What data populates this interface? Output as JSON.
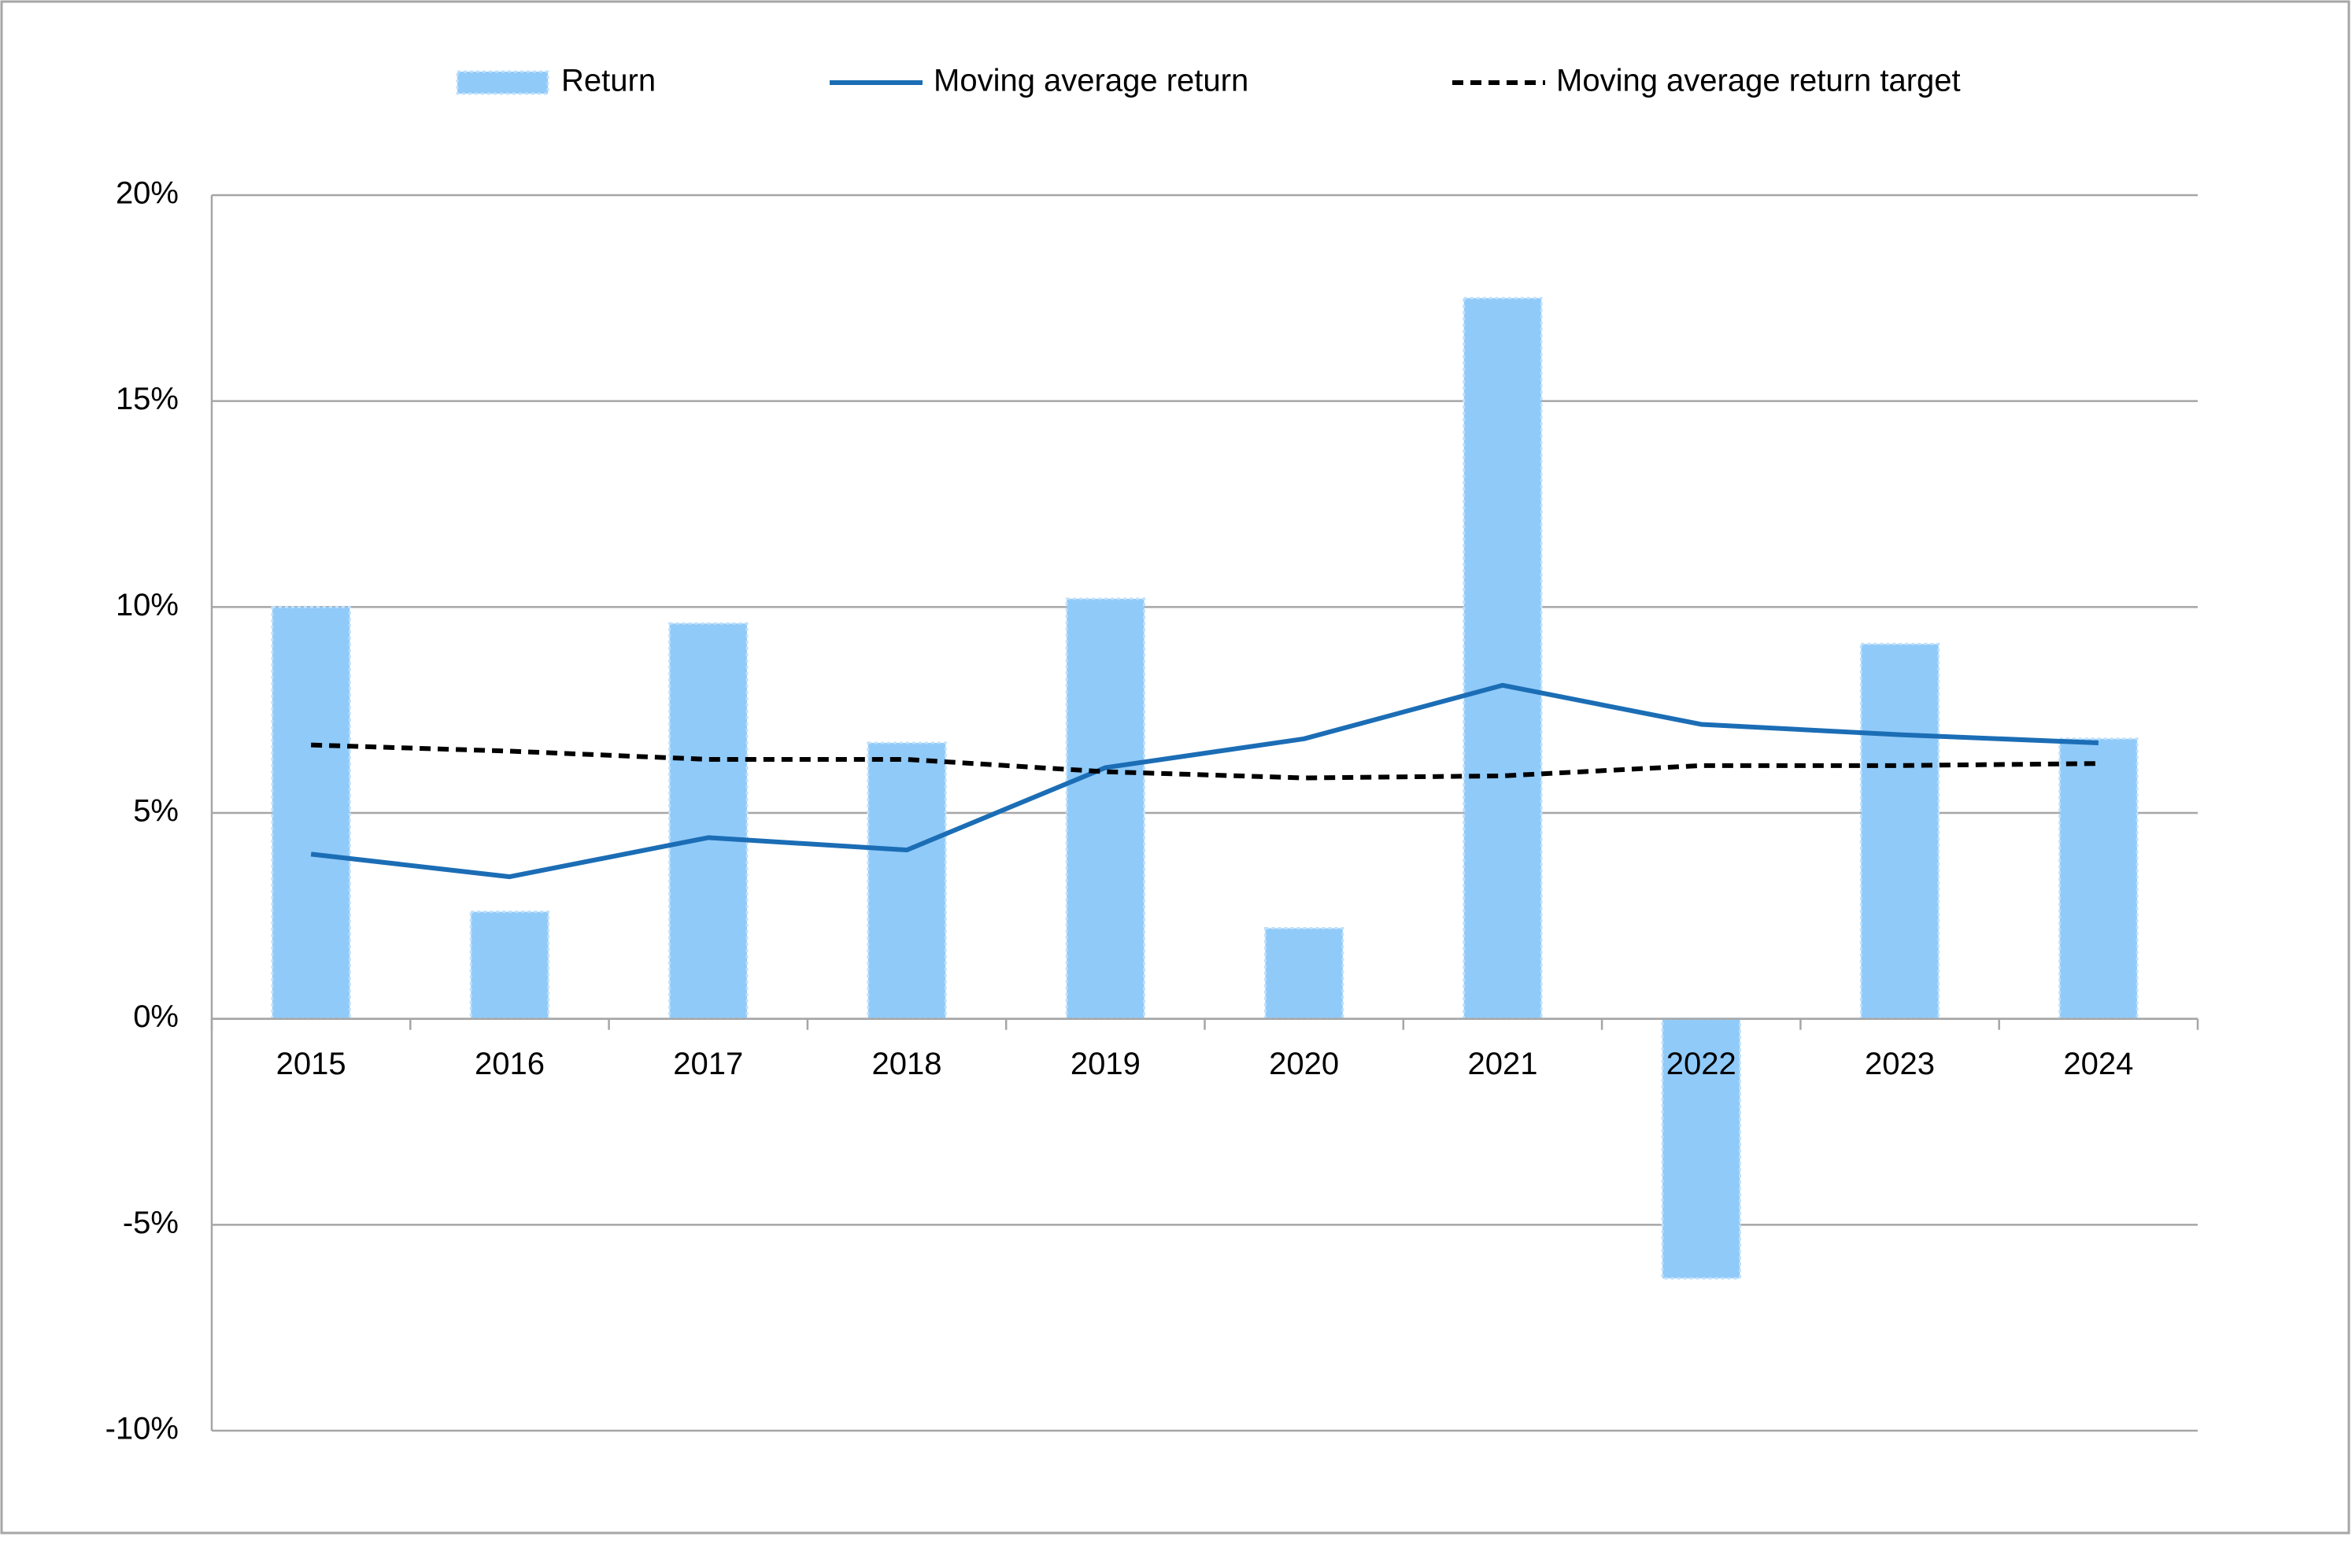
{
  "chart_data": {
    "type": "bar-line",
    "categories": [
      "2015",
      "2016",
      "2017",
      "2018",
      "2019",
      "2020",
      "2021",
      "2022",
      "2023",
      "2024"
    ],
    "series": [
      {
        "name": "Return",
        "type": "bar",
        "color": "#90caf9",
        "values": [
          10.0,
          2.6,
          9.6,
          6.7,
          10.2,
          2.2,
          17.5,
          -6.3,
          9.1,
          6.8
        ]
      },
      {
        "name": "Moving average return",
        "type": "line",
        "color": "#1b6db5",
        "values": [
          4.0,
          3.45,
          4.4,
          4.1,
          6.1,
          6.8,
          8.1,
          7.15,
          6.9,
          6.7
        ]
      },
      {
        "name": "Moving average return target",
        "type": "line",
        "dashed": true,
        "color": "#000000",
        "values": [
          6.65,
          6.5,
          6.3,
          6.3,
          6.0,
          5.85,
          5.9,
          6.15,
          6.15,
          6.2
        ]
      }
    ],
    "ylim": [
      -10,
      20
    ],
    "yticks": [
      {
        "value": -10,
        "label": "-10%"
      },
      {
        "value": -5,
        "label": "-5%"
      },
      {
        "value": 0,
        "label": "0%"
      },
      {
        "value": 5,
        "label": "5%"
      },
      {
        "value": 10,
        "label": "10%"
      },
      {
        "value": 15,
        "label": "15%"
      },
      {
        "value": 20,
        "label": "20%"
      }
    ],
    "grid": true,
    "legend": "top"
  }
}
